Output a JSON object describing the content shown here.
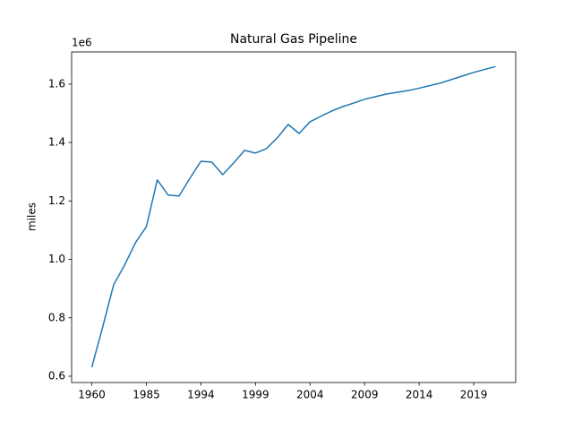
{
  "chart_data": {
    "type": "line",
    "title": "Natural Gas Pipeline",
    "y_label": "miles",
    "y_offset_label": "1e6",
    "categories": [
      "1960",
      null,
      null,
      null,
      null,
      "1985",
      null,
      null,
      null,
      null,
      "1994",
      null,
      null,
      null,
      null,
      "1999",
      null,
      null,
      null,
      null,
      "2004",
      null,
      null,
      null,
      null,
      "2009",
      null,
      null,
      null,
      null,
      "2014",
      null,
      null,
      null,
      null,
      "2019",
      null,
      null
    ],
    "values": [
      631000,
      769000,
      913000,
      980000,
      1057000,
      1112000,
      1272000,
      1220000,
      1217000,
      1278000,
      1336000,
      1333000,
      1290000,
      1330000,
      1373000,
      1364000,
      1379000,
      1416000,
      1462000,
      1431000,
      1471000,
      1490000,
      1508000,
      1523000,
      1535000,
      1548000,
      1557000,
      1566000,
      1572000,
      1578000,
      1586000,
      1595000,
      1604000,
      1616000,
      1628000,
      1640000,
      1650000,
      1660000
    ],
    "color": "#1f77b4",
    "ylim": [
      578500,
      1710000
    ],
    "yticks": [
      {
        "value": 600000,
        "label": "0.6"
      },
      {
        "value": 800000,
        "label": "0.8"
      },
      {
        "value": 1000000,
        "label": "1.0"
      },
      {
        "value": 1200000,
        "label": "1.2"
      },
      {
        "value": 1400000,
        "label": "1.4"
      },
      {
        "value": 1600000,
        "label": "1.6"
      }
    ]
  }
}
